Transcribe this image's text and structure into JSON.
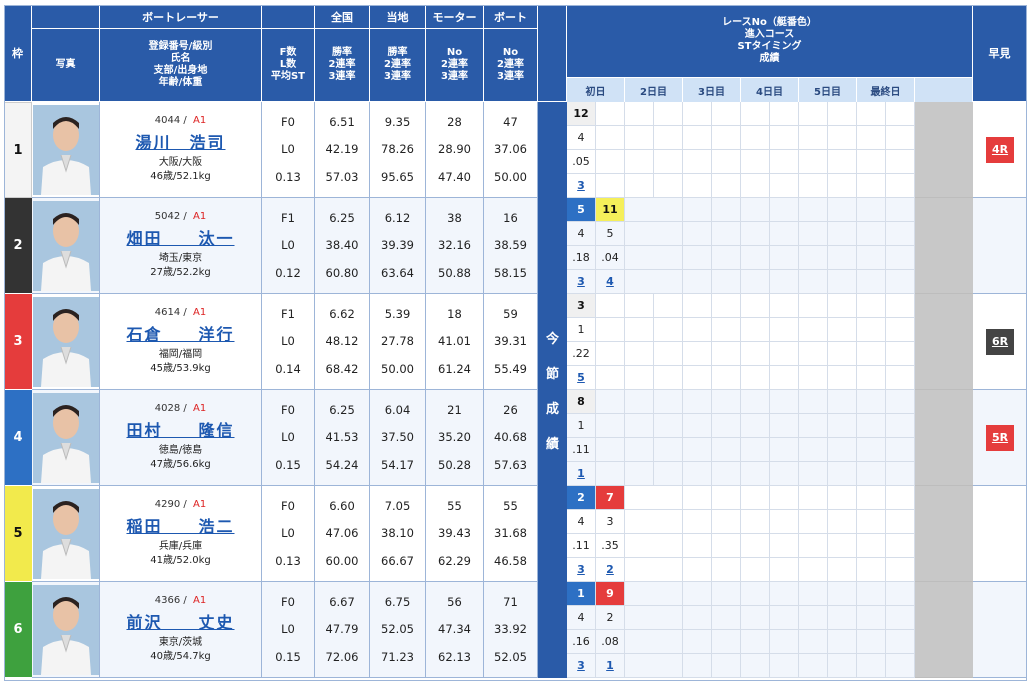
{
  "header": {
    "waku": "枠",
    "photo": "写真",
    "racer_group": "ボートレーサー",
    "racer_sub": [
      "登録番号/級別",
      "氏名",
      "支部/出身地",
      "年齢/体重"
    ],
    "fl": [
      "F数",
      "L数",
      "平均ST"
    ],
    "national": "全国",
    "local": "当地",
    "motor": "モーター",
    "boat": "ボート",
    "rate_sub": [
      "勝率",
      "2連率",
      "3連率"
    ],
    "mb_sub": [
      "No",
      "2連率",
      "3連率"
    ],
    "race_info": [
      "レースNo（艇番色）",
      "進入コース",
      "STタイミング",
      "成績"
    ],
    "early": "早見",
    "days": [
      "初日",
      "2日目",
      "3日目",
      "4日目",
      "5日目",
      "最終日",
      ""
    ],
    "konsetsu": [
      "今",
      "節",
      "成",
      "績"
    ]
  },
  "racers": [
    {
      "lane": "1",
      "reg": "4044",
      "cls": "A1",
      "name": "湯川　浩司",
      "branch": "大阪/大阪",
      "age_weight": "46歳/52.1kg",
      "f": "F0",
      "l": "L0",
      "st": "0.13",
      "national": [
        "6.51",
        "42.19",
        "57.03"
      ],
      "local": [
        "9.35",
        "78.26",
        "95.65"
      ],
      "motor": [
        "28",
        "28.90",
        "47.40"
      ],
      "boat": [
        "47",
        "37.06",
        "50.00"
      ],
      "results": [
        {
          "race": "12",
          "color": "b1",
          "course": "4",
          "st": ".05",
          "finish": "3"
        }
      ],
      "early": "4R",
      "early_color": "red"
    },
    {
      "lane": "2",
      "reg": "5042",
      "cls": "A1",
      "name": "畑田　　汰一",
      "branch": "埼玉/東京",
      "age_weight": "27歳/52.2kg",
      "f": "F1",
      "l": "L0",
      "st": "0.12",
      "national": [
        "6.25",
        "38.40",
        "60.80"
      ],
      "local": [
        "6.12",
        "39.39",
        "63.64"
      ],
      "motor": [
        "38",
        "32.16",
        "50.88"
      ],
      "boat": [
        "16",
        "38.59",
        "58.15"
      ],
      "results": [
        {
          "race": "5",
          "color": "b4",
          "course": "4",
          "st": ".18",
          "finish": "3"
        },
        {
          "race": "11",
          "color": "b5",
          "course": "5",
          "st": ".04",
          "finish": "4"
        }
      ],
      "early": "",
      "early_color": ""
    },
    {
      "lane": "3",
      "reg": "4614",
      "cls": "A1",
      "name": "石倉　　洋行",
      "branch": "福岡/福岡",
      "age_weight": "45歳/53.9kg",
      "f": "F1",
      "l": "L0",
      "st": "0.14",
      "national": [
        "6.62",
        "48.12",
        "68.42"
      ],
      "local": [
        "5.39",
        "27.78",
        "50.00"
      ],
      "motor": [
        "18",
        "41.01",
        "61.24"
      ],
      "boat": [
        "59",
        "39.31",
        "55.49"
      ],
      "results": [
        {
          "race": "3",
          "color": "b1",
          "course": "1",
          "st": ".22",
          "finish": "5"
        }
      ],
      "early": "6R",
      "early_color": "dark"
    },
    {
      "lane": "4",
      "reg": "4028",
      "cls": "A1",
      "name": "田村　　隆信",
      "branch": "徳島/徳島",
      "age_weight": "47歳/56.6kg",
      "f": "F0",
      "l": "L0",
      "st": "0.15",
      "national": [
        "6.25",
        "41.53",
        "54.24"
      ],
      "local": [
        "6.04",
        "37.50",
        "54.17"
      ],
      "motor": [
        "21",
        "35.20",
        "50.28"
      ],
      "boat": [
        "26",
        "40.68",
        "57.63"
      ],
      "results": [
        {
          "race": "8",
          "color": "b1",
          "course": "1",
          "st": ".11",
          "finish": "1"
        }
      ],
      "early": "5R",
      "early_color": "red"
    },
    {
      "lane": "5",
      "reg": "4290",
      "cls": "A1",
      "name": "稲田　　浩二",
      "branch": "兵庫/兵庫",
      "age_weight": "41歳/52.0kg",
      "f": "F0",
      "l": "L0",
      "st": "0.13",
      "national": [
        "6.60",
        "47.06",
        "60.00"
      ],
      "local": [
        "7.05",
        "38.10",
        "66.67"
      ],
      "motor": [
        "55",
        "39.43",
        "62.29"
      ],
      "boat": [
        "55",
        "31.68",
        "46.58"
      ],
      "results": [
        {
          "race": "2",
          "color": "b4",
          "course": "4",
          "st": ".11",
          "finish": "3"
        },
        {
          "race": "7",
          "color": "b3",
          "course": "3",
          "st": ".35",
          "finish": "2"
        }
      ],
      "early": "",
      "early_color": ""
    },
    {
      "lane": "6",
      "reg": "4366",
      "cls": "A1",
      "name": "前沢　　丈史",
      "branch": "東京/茨城",
      "age_weight": "40歳/54.7kg",
      "f": "F0",
      "l": "L0",
      "st": "0.15",
      "national": [
        "6.67",
        "47.79",
        "72.06"
      ],
      "local": [
        "6.75",
        "52.05",
        "71.23"
      ],
      "motor": [
        "56",
        "47.34",
        "62.13"
      ],
      "boat": [
        "71",
        "33.92",
        "52.05"
      ],
      "results": [
        {
          "race": "1",
          "color": "b4",
          "course": "4",
          "st": ".16",
          "finish": "3"
        },
        {
          "race": "9",
          "color": "b3",
          "course": "2",
          "st": ".08",
          "finish": "1"
        }
      ],
      "early": "",
      "early_color": ""
    }
  ]
}
